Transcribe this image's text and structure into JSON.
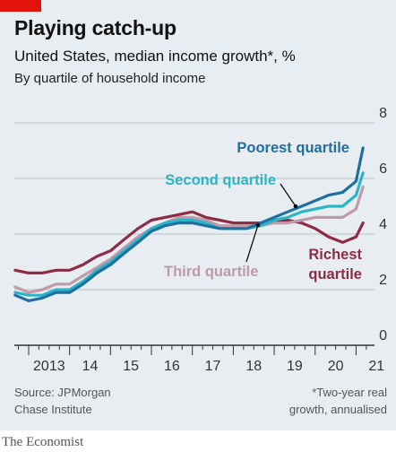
{
  "header": {
    "title": "Playing catch-up",
    "subtitle": "United States, median income growth*, %",
    "subsubtitle": "By quartile of household income"
  },
  "footer": {
    "source_line1": "Source: JPMorgan",
    "source_line2": "Chase Institute",
    "note_line1": "*Two-year real",
    "note_line2": "growth, annualised"
  },
  "brand": "The Economist",
  "colors": {
    "red_tag": "#e3120b",
    "background": "#e8edf1",
    "poorest": "#1f6fa3",
    "second": "#2bb5c8",
    "third": "#c09aa8",
    "richest": "#8e2b45",
    "grid": "#b9c2c9",
    "axis": "#333333"
  },
  "chart_data": {
    "type": "line",
    "title": "Playing catch-up",
    "subtitle": "United States, median income growth*, %",
    "ylim": [
      0,
      8
    ],
    "yticks": [
      0,
      2,
      4,
      6,
      8
    ],
    "x_ticks": [
      {
        "x": 2013,
        "label": "2013"
      },
      {
        "x": 2014,
        "label": "14"
      },
      {
        "x": 2015,
        "label": "15"
      },
      {
        "x": 2016,
        "label": "16"
      },
      {
        "x": 2017,
        "label": "17"
      },
      {
        "x": 2018,
        "label": "18"
      },
      {
        "x": 2019,
        "label": "19"
      },
      {
        "x": 2020,
        "label": "20"
      },
      {
        "x": 2021,
        "label": "21"
      }
    ],
    "xlim": [
      2012.65,
      2021.45
    ],
    "x": [
      2012.67,
      2013.0,
      2013.33,
      2013.67,
      2014.0,
      2014.33,
      2014.67,
      2015.0,
      2015.33,
      2015.67,
      2016.0,
      2016.33,
      2016.67,
      2017.0,
      2017.33,
      2017.67,
      2018.0,
      2018.33,
      2018.67,
      2019.0,
      2019.33,
      2019.67,
      2020.0,
      2020.33,
      2020.67,
      2021.0,
      2021.17
    ],
    "series": [
      {
        "name": "Poorest quartile",
        "color_key": "poorest",
        "values": [
          1.8,
          1.6,
          1.7,
          1.9,
          1.9,
          2.2,
          2.6,
          2.9,
          3.3,
          3.7,
          4.1,
          4.3,
          4.4,
          4.4,
          4.3,
          4.2,
          4.2,
          4.2,
          4.4,
          4.6,
          4.8,
          5.0,
          5.2,
          5.4,
          5.5,
          5.9,
          7.1
        ]
      },
      {
        "name": "Second quartile",
        "color_key": "second",
        "values": [
          1.9,
          1.8,
          1.8,
          2.0,
          2.0,
          2.3,
          2.7,
          3.0,
          3.4,
          3.8,
          4.2,
          4.4,
          4.5,
          4.5,
          4.4,
          4.2,
          4.2,
          4.2,
          4.3,
          4.5,
          4.6,
          4.8,
          4.9,
          5.0,
          5.0,
          5.4,
          6.2
        ]
      },
      {
        "name": "Third quartile",
        "color_key": "third",
        "values": [
          2.1,
          1.9,
          2.0,
          2.2,
          2.2,
          2.5,
          2.8,
          3.1,
          3.5,
          3.9,
          4.2,
          4.4,
          4.6,
          4.6,
          4.5,
          4.3,
          4.3,
          4.3,
          4.3,
          4.4,
          4.4,
          4.5,
          4.6,
          4.6,
          4.6,
          4.9,
          5.7
        ]
      },
      {
        "name": "Richest quartile",
        "color_key": "richest",
        "values": [
          2.7,
          2.6,
          2.6,
          2.7,
          2.7,
          2.9,
          3.2,
          3.4,
          3.8,
          4.2,
          4.5,
          4.6,
          4.7,
          4.8,
          4.6,
          4.5,
          4.4,
          4.4,
          4.4,
          4.5,
          4.5,
          4.4,
          4.2,
          3.9,
          3.7,
          3.9,
          4.4
        ]
      }
    ],
    "labels": [
      {
        "series": "Poorest quartile",
        "lines": [
          "Poorest quartile"
        ]
      },
      {
        "series": "Second quartile",
        "lines": [
          "Second quartile"
        ]
      },
      {
        "series": "Third quartile",
        "lines": [
          "Third quartile"
        ]
      },
      {
        "series": "Richest quartile",
        "lines": [
          "Richest",
          "quartile"
        ]
      }
    ]
  }
}
